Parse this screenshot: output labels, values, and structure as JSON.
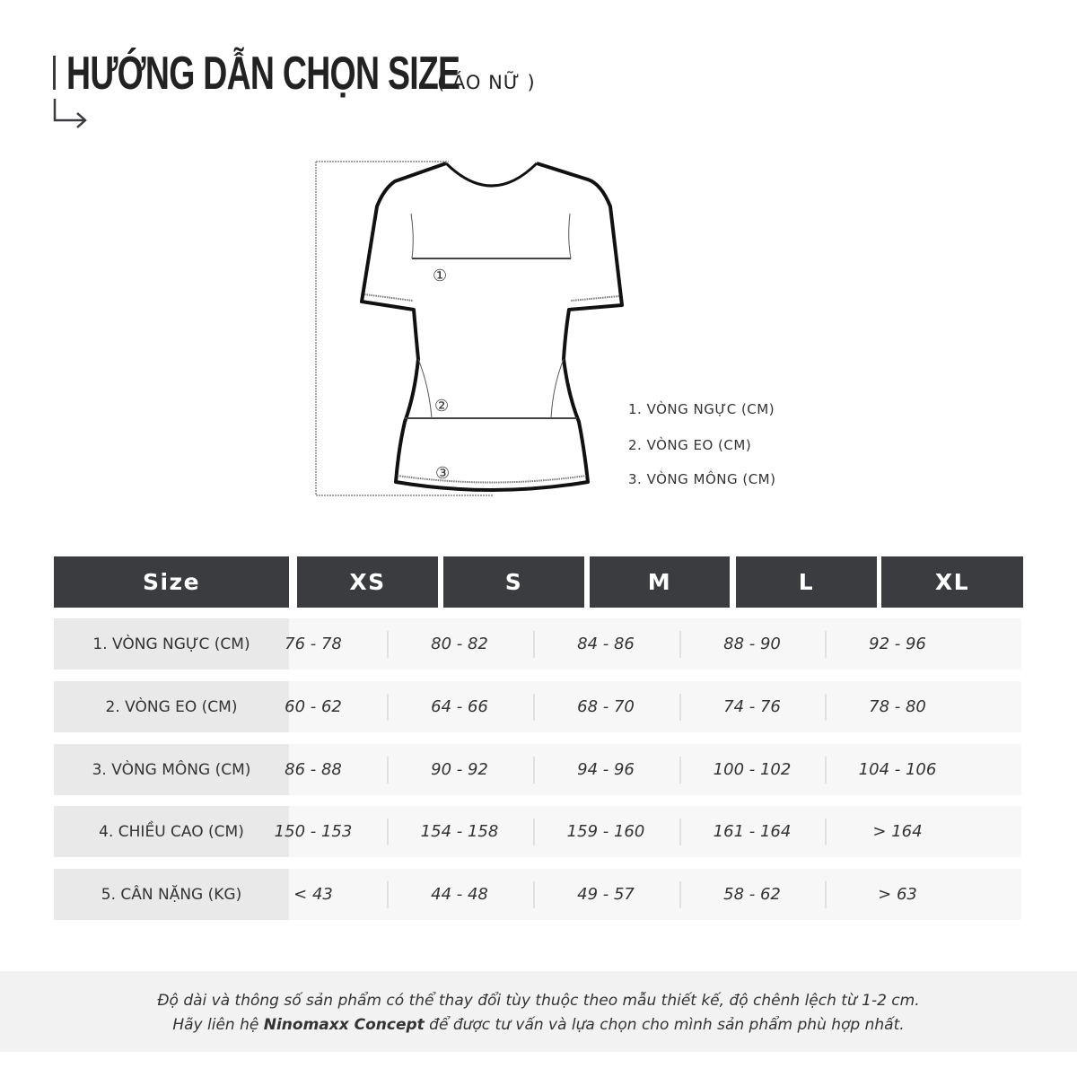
{
  "header": {
    "title": "HƯỚNG DẪN CHỌN SIZE",
    "subtitle": "( ÁO NỮ )"
  },
  "diagram": {
    "markers": [
      "①",
      "②",
      "③"
    ],
    "legend": [
      "1. VÒNG NGỰC (CM)",
      "2. VÒNG EO (CM)",
      "3. VÒNG MÔNG (CM)"
    ]
  },
  "table": {
    "headers": [
      "Size",
      "XS",
      "S",
      "M",
      "L",
      "XL"
    ],
    "rows": [
      {
        "label": "1. VÒNG NGỰC (CM)",
        "values": [
          "76 - 78",
          "80 - 82",
          "84 - 86",
          "88 - 90",
          "92 - 96"
        ]
      },
      {
        "label": "2. VÒNG EO (CM)",
        "values": [
          "60 - 62",
          "64 - 66",
          "68 - 70",
          "74 - 76",
          "78 - 80"
        ]
      },
      {
        "label": "3. VÒNG MÔNG (CM)",
        "values": [
          "86 - 88",
          "90 - 92",
          "94 - 96",
          "100 - 102",
          "104 - 106"
        ]
      },
      {
        "label": "4. CHIỀU CAO (CM)",
        "values": [
          "150 - 153",
          "154 - 158",
          "159 - 160",
          "161 - 164",
          "> 164"
        ]
      },
      {
        "label": "5. CÂN NẶNG (KG)",
        "values": [
          "< 43",
          "44 - 48",
          "49 - 57",
          "58 - 62",
          "> 63"
        ]
      }
    ]
  },
  "footer": {
    "line1": "Độ dài và thông số sản phẩm có thể thay đổi tùy thuộc theo mẫu thiết kế, độ chênh lệch từ 1-2 cm.",
    "line2_pre": "Hãy liên hệ ",
    "line2_brand": "Ninomaxx Concept",
    "line2_post": " để được tư vấn và lựa chọn cho mình sản phẩm phù hợp nhất."
  }
}
